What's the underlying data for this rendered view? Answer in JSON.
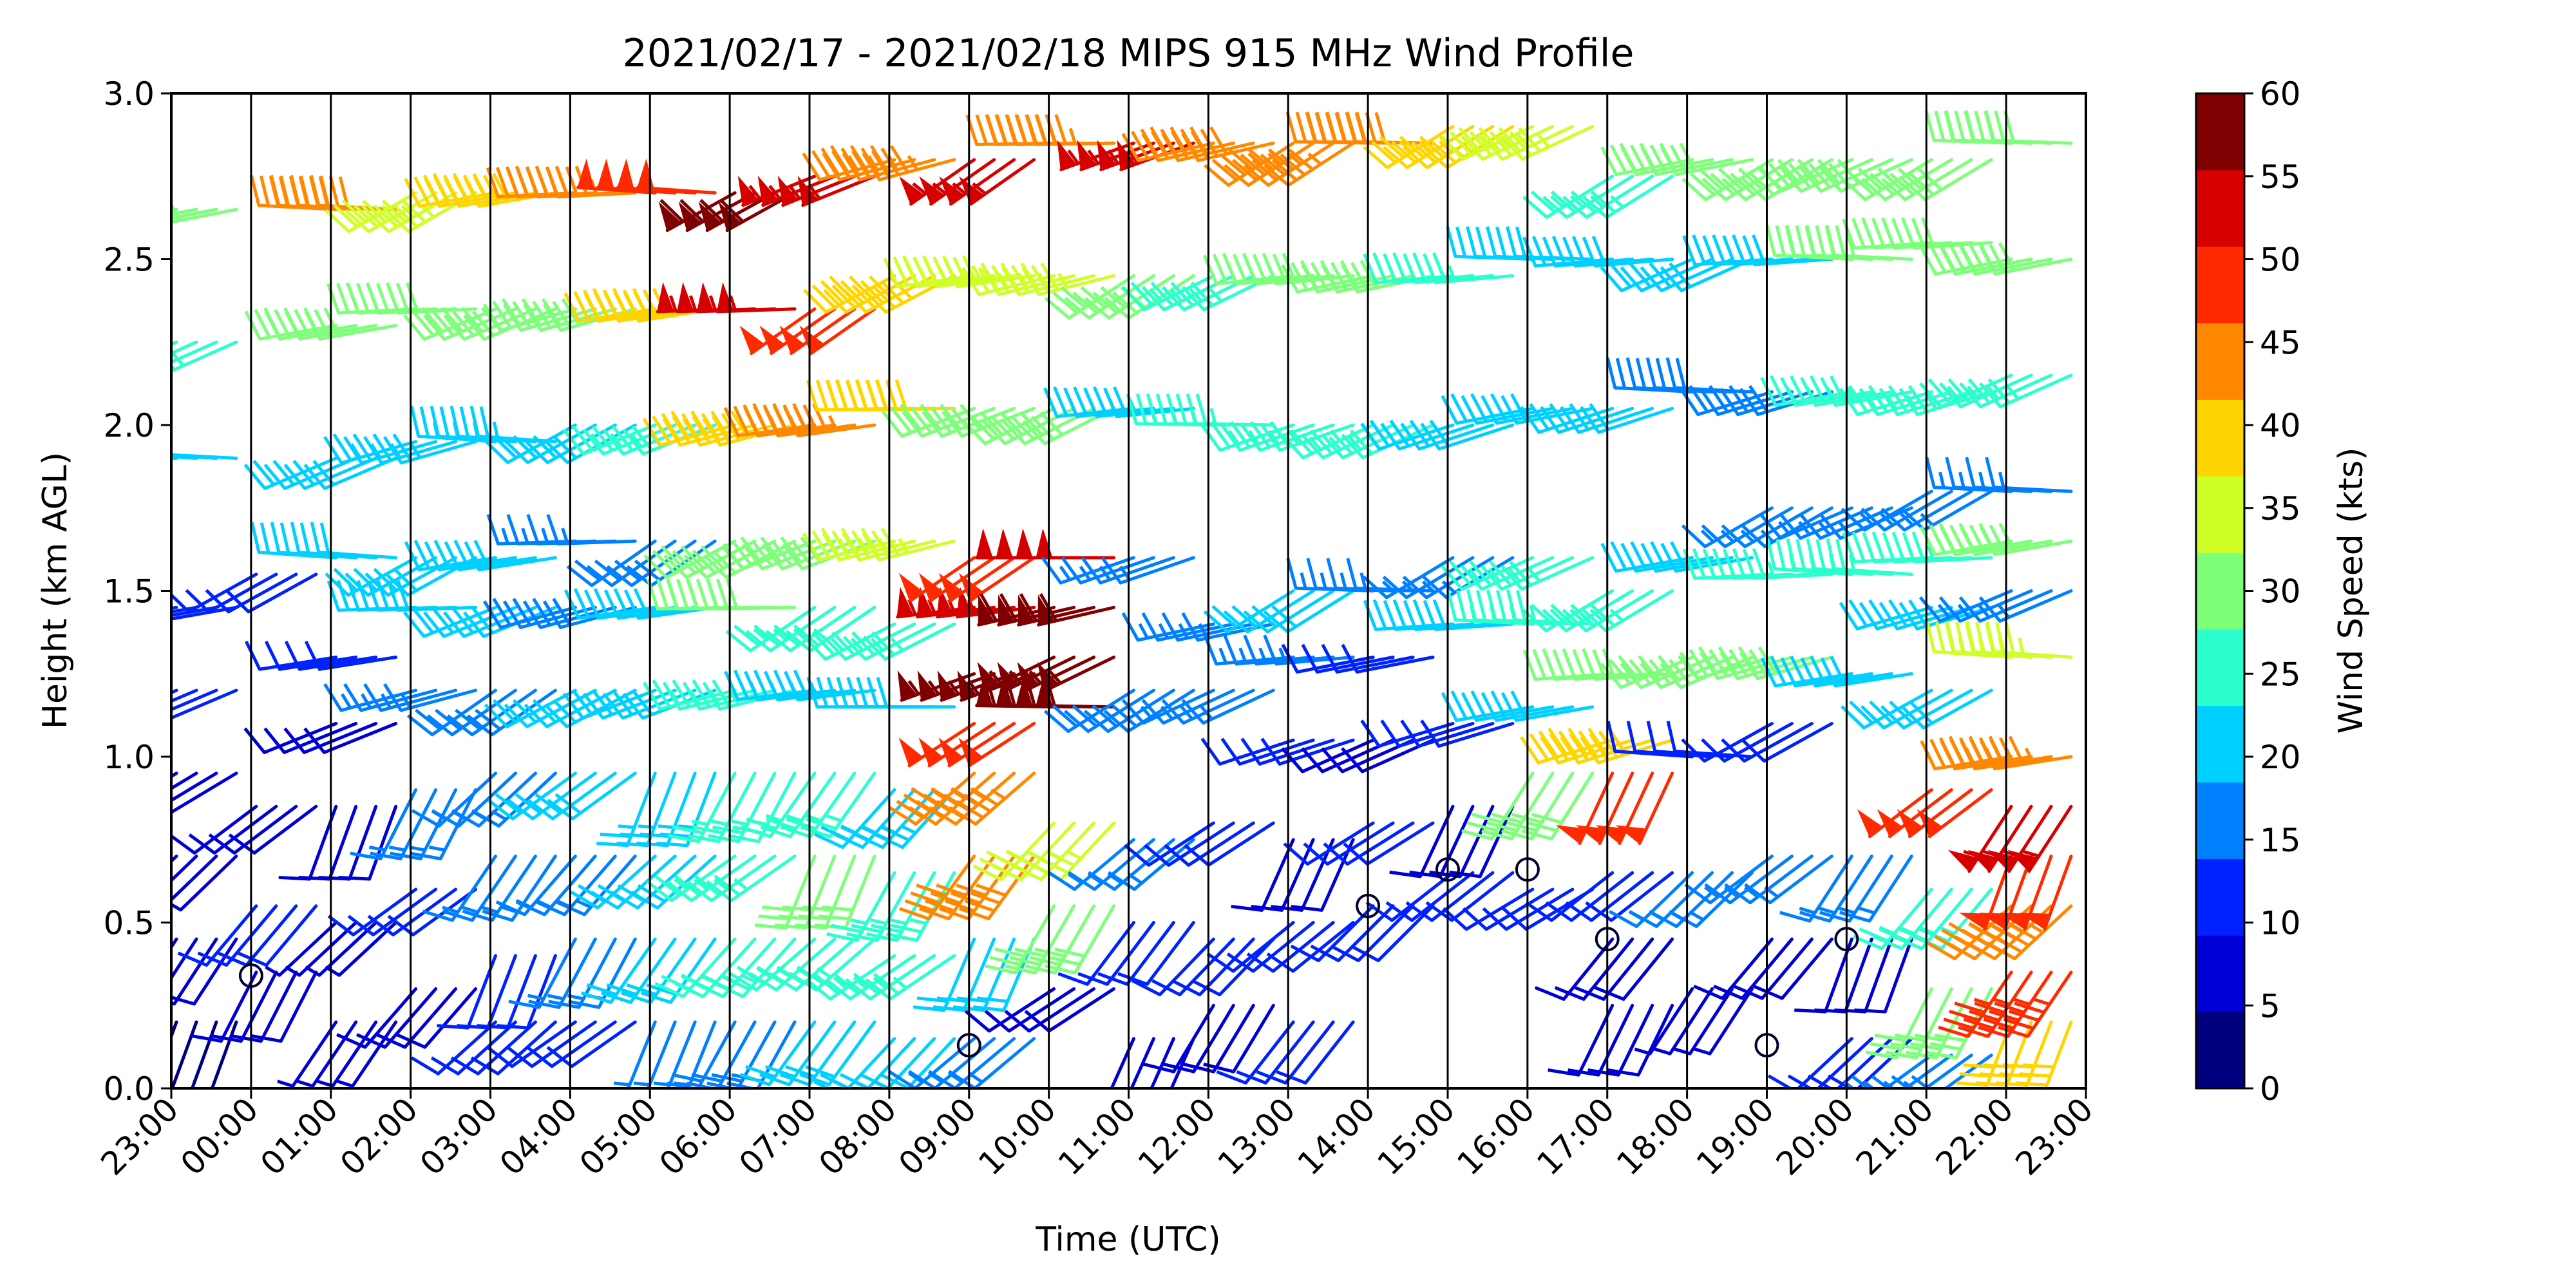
{
  "chart_data": {
    "type": "wind-barb-profile",
    "title": "2021/02/17 - 2021/02/18 MIPS 915 MHz Wind Profile",
    "xlabel": "Time (UTC)",
    "ylabel": "Height (km AGL)",
    "colorbar_label": "Wind Speed (kts)",
    "x_tick_labels": [
      "23:00",
      "00:00",
      "01:00",
      "02:00",
      "03:00",
      "04:00",
      "05:00",
      "06:00",
      "07:00",
      "08:00",
      "09:00",
      "10:00",
      "11:00",
      "12:00",
      "13:00",
      "14:00",
      "15:00",
      "16:00",
      "17:00",
      "18:00",
      "19:00",
      "20:00",
      "21:00",
      "22:00",
      "23:00"
    ],
    "y_ticks": [
      0.0,
      0.5,
      1.0,
      1.5,
      2.0,
      2.5,
      3.0
    ],
    "y_tick_labels": [
      "0.0",
      "0.5",
      "1.0",
      "1.5",
      "2.0",
      "2.5",
      "3.0"
    ],
    "ylim": [
      0.0,
      3.0
    ],
    "colorbar_ticks": [
      "0",
      "5",
      "10",
      "15",
      "20",
      "25",
      "30",
      "35",
      "40",
      "45",
      "50",
      "55",
      "60"
    ],
    "colorbar_range": [
      0,
      60
    ],
    "colorbar_colors": [
      "#00007f",
      "#0000d6",
      "#0022ff",
      "#0080ff",
      "#00d0ff",
      "#2affcd",
      "#7dff7a",
      "#d0ff27",
      "#ffd500",
      "#ff8800",
      "#ff2a00",
      "#d60000",
      "#7f0000"
    ],
    "hour_columns": [
      {
        "time": "23:00",
        "profile": [
          {
            "h": 0.2,
            "spd": 4
          },
          {
            "h": 0.45,
            "spd": 8
          },
          {
            "h": 0.7,
            "spd": 6
          },
          {
            "h": 0.95,
            "spd": 9
          },
          {
            "h": 1.2,
            "spd": 10
          },
          {
            "h": 1.45,
            "spd": 12
          },
          {
            "h": 1.9,
            "spd": 22
          },
          {
            "h": 2.25,
            "spd": 24
          },
          {
            "h": 2.65,
            "spd": 31
          }
        ]
      },
      {
        "time": "00:00",
        "profile": [
          {
            "h": 0.35,
            "spd": 8
          },
          {
            "h": 0.55,
            "spd": 10
          },
          {
            "h": 0.85,
            "spd": 9
          },
          {
            "h": 1.55,
            "spd": 11
          }
        ]
      },
      {
        "time": "01:00",
        "profile": [
          {
            "h": 0.2,
            "spd": 5
          },
          {
            "h": 0.5,
            "spd": 7
          },
          {
            "h": 0.85,
            "spd": 9
          },
          {
            "h": 1.1,
            "spd": 8
          },
          {
            "h": 1.3,
            "spd": 12
          },
          {
            "h": 1.6,
            "spd": 21
          },
          {
            "h": 1.9,
            "spd": 22
          },
          {
            "h": 2.3,
            "spd": 30
          },
          {
            "h": 2.65,
            "spd": 42
          }
        ]
      },
      {
        "time": "02:00",
        "profile": [
          {
            "h": 0.3,
            "spd": 9
          },
          {
            "h": 0.6,
            "spd": 12
          },
          {
            "h": 0.9,
            "spd": 14
          },
          {
            "h": 1.2,
            "spd": 16
          },
          {
            "h": 1.45,
            "spd": 19
          },
          {
            "h": 1.6,
            "spd": 22
          },
          {
            "h": 1.95,
            "spd": 23
          },
          {
            "h": 2.35,
            "spd": 31
          },
          {
            "h": 2.7,
            "spd": 36
          }
        ]
      },
      {
        "time": "03:00",
        "profile": [
          {
            "h": 0.2,
            "spd": 10
          },
          {
            "h": 0.4,
            "spd": 12
          },
          {
            "h": 0.7,
            "spd": 15
          },
          {
            "h": 0.95,
            "spd": 16
          },
          {
            "h": 1.2,
            "spd": 18
          },
          {
            "h": 1.45,
            "spd": 20
          },
          {
            "h": 1.6,
            "spd": 21
          },
          {
            "h": 1.95,
            "spd": 23
          },
          {
            "h": 2.35,
            "spd": 28
          },
          {
            "h": 2.7,
            "spd": 38
          }
        ]
      },
      {
        "time": "04:00",
        "profile": [
          {
            "h": 0.2,
            "spd": 12
          },
          {
            "h": 0.45,
            "spd": 15
          },
          {
            "h": 0.7,
            "spd": 17
          },
          {
            "h": 0.95,
            "spd": 20
          },
          {
            "h": 1.2,
            "spd": 19
          },
          {
            "h": 1.45,
            "spd": 18
          },
          {
            "h": 1.65,
            "spd": 17
          },
          {
            "h": 2.0,
            "spd": 22
          },
          {
            "h": 2.35,
            "spd": 29
          },
          {
            "h": 2.7,
            "spd": 44
          }
        ]
      },
      {
        "time": "05:00",
        "profile": [
          {
            "h": 0.2,
            "spd": 14
          },
          {
            "h": 0.45,
            "spd": 20
          },
          {
            "h": 0.7,
            "spd": 22
          },
          {
            "h": 0.95,
            "spd": 23
          },
          {
            "h": 1.2,
            "spd": 20
          },
          {
            "h": 1.45,
            "spd": 19
          },
          {
            "h": 1.65,
            "spd": 18
          },
          {
            "h": 2.0,
            "spd": 27
          },
          {
            "h": 2.35,
            "spd": 38
          },
          {
            "h": 2.7,
            "spd": 48
          }
        ]
      },
      {
        "time": "06:00",
        "profile": [
          {
            "h": 0.2,
            "spd": 18
          },
          {
            "h": 0.45,
            "spd": 24
          },
          {
            "h": 0.7,
            "spd": 27
          },
          {
            "h": 0.95,
            "spd": 26
          },
          {
            "h": 1.2,
            "spd": 24
          },
          {
            "h": 1.45,
            "spd": 28
          },
          {
            "h": 1.65,
            "spd": 31
          },
          {
            "h": 2.0,
            "spd": 38
          },
          {
            "h": 2.35,
            "spd": 53
          },
          {
            "h": 2.7,
            "spd": 58
          }
        ]
      },
      {
        "time": "07:00",
        "profile": [
          {
            "h": 0.2,
            "spd": 20
          },
          {
            "h": 0.45,
            "spd": 26
          },
          {
            "h": 0.7,
            "spd": 28
          },
          {
            "h": 0.95,
            "spd": 25
          },
          {
            "h": 1.2,
            "spd": 23
          },
          {
            "h": 1.45,
            "spd": 27
          },
          {
            "h": 1.65,
            "spd": 32
          },
          {
            "h": 2.0,
            "spd": 43
          },
          {
            "h": 2.35,
            "spd": 48
          },
          {
            "h": 2.75,
            "spd": 53
          }
        ]
      },
      {
        "time": "08:00",
        "profile": [
          {
            "h": 0.15,
            "spd": 21
          },
          {
            "h": 0.4,
            "spd": 24
          },
          {
            "h": 0.65,
            "spd": 24
          },
          {
            "h": 0.9,
            "spd": 23
          },
          {
            "h": 1.15,
            "spd": 22
          },
          {
            "h": 1.4,
            "spd": 25
          },
          {
            "h": 1.65,
            "spd": 33
          },
          {
            "h": 2.05,
            "spd": 38
          },
          {
            "h": 2.45,
            "spd": 38
          },
          {
            "h": 2.8,
            "spd": 44
          }
        ]
      },
      {
        "time": "09:00",
        "profile": [
          {
            "h": 0.15,
            "spd": 15
          },
          {
            "h": 0.45,
            "spd": 22
          },
          {
            "h": 0.7,
            "spd": 42
          },
          {
            "h": 0.95,
            "spd": 45
          },
          {
            "h": 1.1,
            "spd": 48
          },
          {
            "h": 1.25,
            "spd": 57
          },
          {
            "h": 1.45,
            "spd": 53
          },
          {
            "h": 1.6,
            "spd": 48
          },
          {
            "h": 2.05,
            "spd": 31
          },
          {
            "h": 2.45,
            "spd": 36
          },
          {
            "h": 2.8,
            "spd": 53
          }
        ]
      },
      {
        "time": "10:00",
        "profile": [
          {
            "h": 0.3,
            "spd": 8
          },
          {
            "h": 0.55,
            "spd": 30
          },
          {
            "h": 0.8,
            "spd": 34
          },
          {
            "h": 1.15,
            "spd": 58
          },
          {
            "h": 1.3,
            "spd": 57
          },
          {
            "h": 1.45,
            "spd": 58
          },
          {
            "h": 1.6,
            "spd": 52
          },
          {
            "h": 2.05,
            "spd": 28
          },
          {
            "h": 2.45,
            "spd": 33
          },
          {
            "h": 2.85,
            "spd": 46
          }
        ]
      },
      {
        "time": "11:00",
        "profile": [
          {
            "h": 0.15,
            "spd": 8
          },
          {
            "h": 0.5,
            "spd": 10
          },
          {
            "h": 0.75,
            "spd": 14
          },
          {
            "h": 1.2,
            "spd": 18
          },
          {
            "h": 1.6,
            "spd": 17
          },
          {
            "h": 2.05,
            "spd": 23
          },
          {
            "h": 2.45,
            "spd": 30
          },
          {
            "h": 2.85,
            "spd": 53
          }
        ]
      },
      {
        "time": "12:00",
        "profile": [
          {
            "h": 0.25,
            "spd": 9
          },
          {
            "h": 0.45,
            "spd": 11
          },
          {
            "h": 0.8,
            "spd": 12
          },
          {
            "h": 1.2,
            "spd": 17
          },
          {
            "h": 1.4,
            "spd": 17
          },
          {
            "h": 2.0,
            "spd": 25
          },
          {
            "h": 2.45,
            "spd": 27
          },
          {
            "h": 2.85,
            "spd": 42
          }
        ]
      },
      {
        "time": "13:00",
        "profile": [
          {
            "h": 0.2,
            "spd": 12
          },
          {
            "h": 0.5,
            "spd": 11
          },
          {
            "h": 0.75,
            "spd": 9
          },
          {
            "h": 1.05,
            "spd": 11
          },
          {
            "h": 1.3,
            "spd": 16
          },
          {
            "h": 1.5,
            "spd": 20
          },
          {
            "h": 2.0,
            "spd": 24
          },
          {
            "h": 2.45,
            "spd": 28
          },
          {
            "h": 2.85,
            "spd": 43
          }
        ]
      },
      {
        "time": "14:00",
        "profile": [
          {
            "h": 0.55,
            "spd": 12
          },
          {
            "h": 0.8,
            "spd": 10
          },
          {
            "h": 1.05,
            "spd": 9
          },
          {
            "h": 1.3,
            "spd": 12
          },
          {
            "h": 1.5,
            "spd": 14
          },
          {
            "h": 2.0,
            "spd": 24
          },
          {
            "h": 2.45,
            "spd": 28
          },
          {
            "h": 2.85,
            "spd": 42
          }
        ]
      },
      {
        "time": "15:00",
        "profile": [
          {
            "h": 0.65,
            "spd": 10
          },
          {
            "h": 0.85,
            "spd": 8
          },
          {
            "h": 1.1,
            "spd": 10
          },
          {
            "h": 1.4,
            "spd": 20
          },
          {
            "h": 1.6,
            "spd": 14
          },
          {
            "h": 2.0,
            "spd": 20
          },
          {
            "h": 2.45,
            "spd": 24
          },
          {
            "h": 2.9,
            "spd": 37
          }
        ]
      },
      {
        "time": "16:00",
        "profile": [
          {
            "h": 0.6,
            "spd": 10
          },
          {
            "h": 0.95,
            "spd": 30
          },
          {
            "h": 1.15,
            "spd": 22
          },
          {
            "h": 1.4,
            "spd": 25
          },
          {
            "h": 1.6,
            "spd": 27
          },
          {
            "h": 2.05,
            "spd": 20
          },
          {
            "h": 2.5,
            "spd": 22
          },
          {
            "h": 2.9,
            "spd": 35
          }
        ]
      },
      {
        "time": "17:00",
        "profile": [
          {
            "h": 0.25,
            "spd": 9
          },
          {
            "h": 0.45,
            "spd": 8
          },
          {
            "h": 0.65,
            "spd": 11
          },
          {
            "h": 0.95,
            "spd": 48
          },
          {
            "h": 1.05,
            "spd": 41
          },
          {
            "h": 1.25,
            "spd": 30
          },
          {
            "h": 1.5,
            "spd": 25
          },
          {
            "h": 2.05,
            "spd": 20
          },
          {
            "h": 2.5,
            "spd": 22
          },
          {
            "h": 2.75,
            "spd": 24
          }
        ]
      },
      {
        "time": "18:00",
        "profile": [
          {
            "h": 0.3,
            "spd": 6
          },
          {
            "h": 0.65,
            "spd": 14
          },
          {
            "h": 1.0,
            "spd": 11
          },
          {
            "h": 1.3,
            "spd": 30
          },
          {
            "h": 1.6,
            "spd": 22
          },
          {
            "h": 2.1,
            "spd": 18
          },
          {
            "h": 2.5,
            "spd": 21
          },
          {
            "h": 2.8,
            "spd": 28
          }
        ]
      },
      {
        "time": "19:00",
        "profile": [
          {
            "h": 0.45,
            "spd": 8
          },
          {
            "h": 0.7,
            "spd": 15
          },
          {
            "h": 1.1,
            "spd": 10
          },
          {
            "h": 1.3,
            "spd": 28
          },
          {
            "h": 1.55,
            "spd": 26
          },
          {
            "h": 1.75,
            "spd": 17
          },
          {
            "h": 2.1,
            "spd": 18
          },
          {
            "h": 2.5,
            "spd": 19
          },
          {
            "h": 2.8,
            "spd": 28
          }
        ]
      },
      {
        "time": "20:00",
        "profile": [
          {
            "h": 0.15,
            "spd": 11
          },
          {
            "h": 0.45,
            "spd": 9
          },
          {
            "h": 0.7,
            "spd": 17
          },
          {
            "h": 1.25,
            "spd": 19
          },
          {
            "h": 1.55,
            "spd": 27
          },
          {
            "h": 1.75,
            "spd": 15
          },
          {
            "h": 2.1,
            "spd": 24
          },
          {
            "h": 2.5,
            "spd": 29
          },
          {
            "h": 2.8,
            "spd": 30
          }
        ]
      },
      {
        "time": "21:00",
        "profile": [
          {
            "h": 0.1,
            "spd": 18
          },
          {
            "h": 0.3,
            "spd": 29
          },
          {
            "h": 0.6,
            "spd": 27
          },
          {
            "h": 0.9,
            "spd": 49
          },
          {
            "h": 1.2,
            "spd": 21
          },
          {
            "h": 1.45,
            "spd": 19
          },
          {
            "h": 1.6,
            "spd": 24
          },
          {
            "h": 1.8,
            "spd": 15
          },
          {
            "h": 2.1,
            "spd": 27
          },
          {
            "h": 2.55,
            "spd": 28
          },
          {
            "h": 2.8,
            "spd": 31
          }
        ]
      },
      {
        "time": "22:00",
        "profile": [
          {
            "h": 0.2,
            "spd": 38
          },
          {
            "h": 0.35,
            "spd": 47
          },
          {
            "h": 0.55,
            "spd": 45
          },
          {
            "h": 0.7,
            "spd": 50
          },
          {
            "h": 0.85,
            "spd": 55
          },
          {
            "h": 1.0,
            "spd": 44
          },
          {
            "h": 1.3,
            "spd": 36
          },
          {
            "h": 1.5,
            "spd": 17
          },
          {
            "h": 1.65,
            "spd": 30
          },
          {
            "h": 1.8,
            "spd": 14
          },
          {
            "h": 2.15,
            "spd": 26
          },
          {
            "h": 2.5,
            "spd": 29
          },
          {
            "h": 2.85,
            "spd": 32
          }
        ]
      }
    ],
    "calm_markers": [
      {
        "time": "00:00",
        "h": 0.34
      },
      {
        "time": "09:00",
        "h": 0.13
      },
      {
        "time": "14:00",
        "h": 0.55
      },
      {
        "time": "15:00",
        "h": 0.66
      },
      {
        "time": "16:00",
        "h": 0.66
      },
      {
        "time": "17:00",
        "h": 0.45
      },
      {
        "time": "19:00",
        "h": 0.13
      },
      {
        "time": "20:00",
        "h": 0.45
      }
    ]
  }
}
